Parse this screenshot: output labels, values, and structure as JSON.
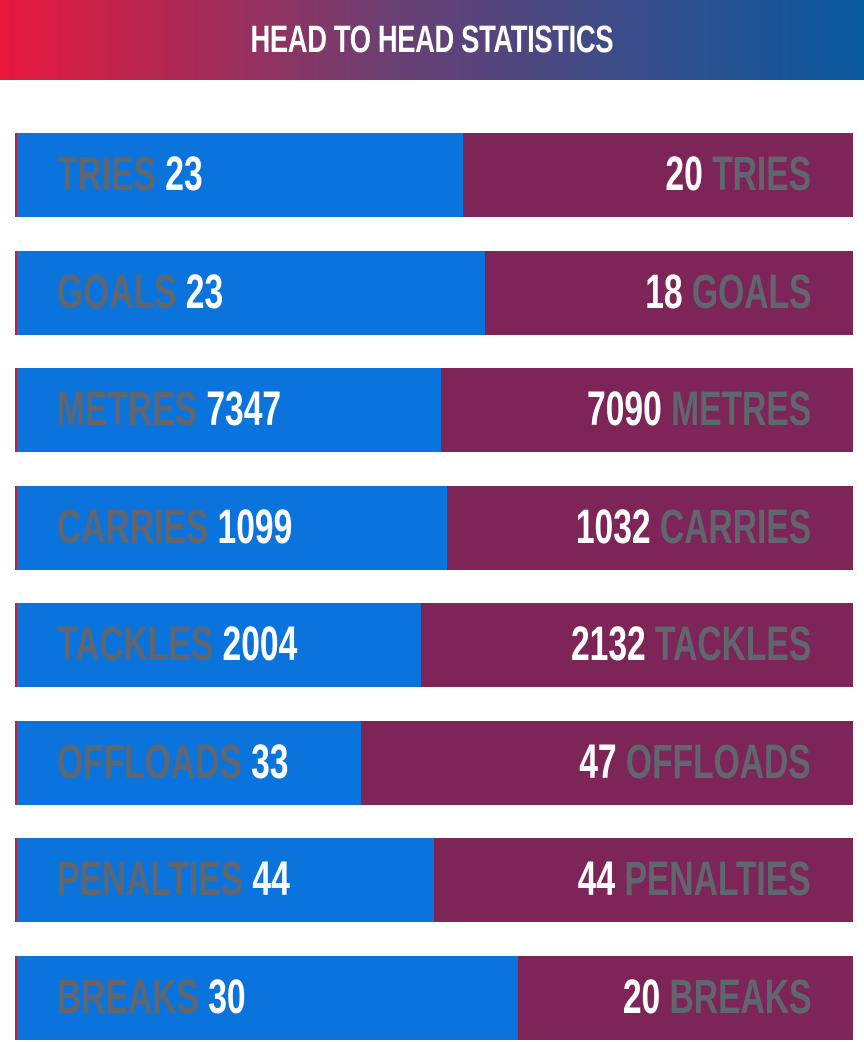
{
  "header": {
    "title": "HEAD TO HEAD STATISTICS"
  },
  "colors": {
    "left_bar": "#0a73dc",
    "right_bar": "#7e2558",
    "label_text": "#5f6670",
    "value_text": "#ffffff"
  },
  "chart_data": {
    "type": "bar",
    "orientation": "horizontal-stacked",
    "title": "HEAD TO HEAD STATISTICS",
    "categories": [
      "TRIES",
      "GOALS",
      "METRES",
      "CARRIES",
      "TACKLES",
      "OFFLOADS",
      "PENALTIES",
      "BREAKS"
    ],
    "series": [
      {
        "values": [
          23,
          23,
          7347,
          1099,
          2004,
          33,
          44,
          30
        ]
      },
      {
        "values": [
          20,
          18,
          7090,
          1032,
          2132,
          47,
          44,
          20
        ]
      }
    ]
  }
}
